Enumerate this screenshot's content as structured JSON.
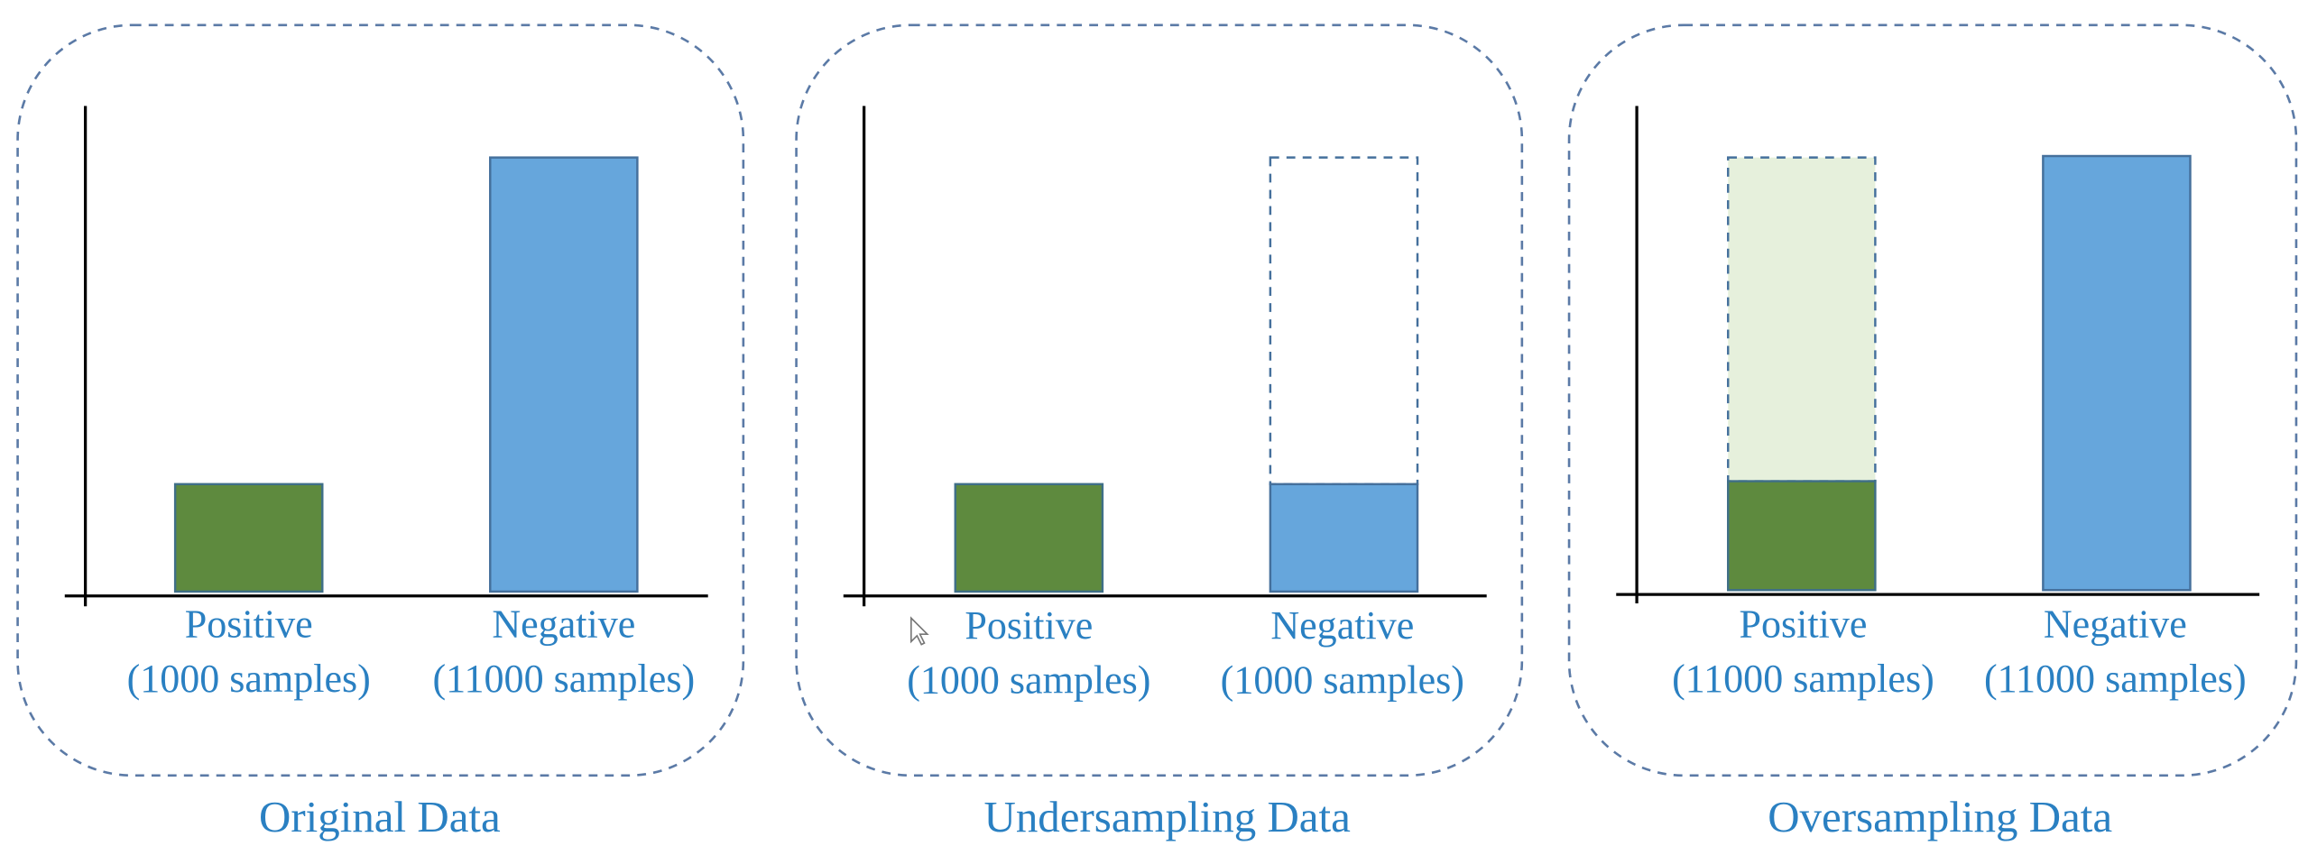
{
  "panels": [
    {
      "title": "Original Data",
      "bars": [
        {
          "name": "Positive",
          "count": "(1000 samples)"
        },
        {
          "name": "Negative",
          "count": "(11000 samples)"
        }
      ]
    },
    {
      "title": "Undersampling Data",
      "bars": [
        {
          "name": "Positive",
          "count": "(1000 samples)"
        },
        {
          "name": "Negative",
          "count": "(1000 samples)"
        }
      ]
    },
    {
      "title": "Oversampling Data",
      "bars": [
        {
          "name": "Positive",
          "count": "(11000 samples)"
        },
        {
          "name": "Negative",
          "count": "(11000 samples)"
        }
      ]
    }
  ]
}
